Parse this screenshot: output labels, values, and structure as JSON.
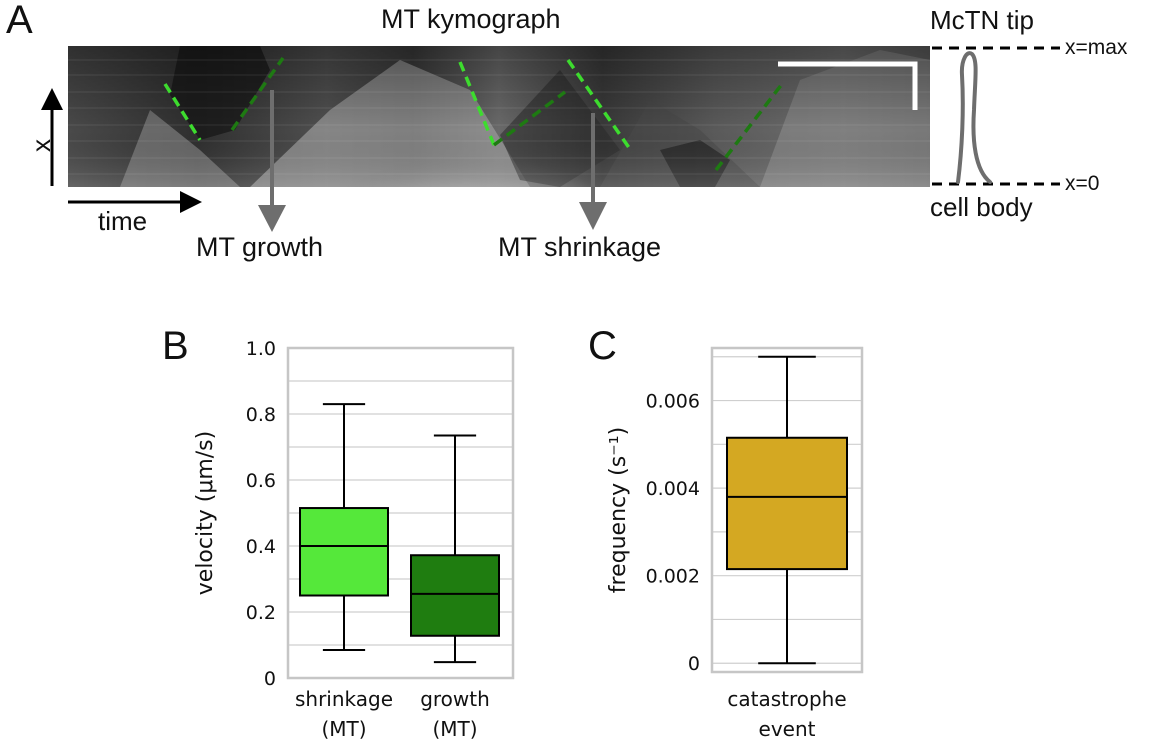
{
  "panel_a": {
    "letter": "A",
    "title": "MT kymograph",
    "x_axis_label": "x",
    "time_label": "time",
    "growth_label": "MT growth",
    "shrinkage_label": "MT shrinkage",
    "tip_label": "McTN tip",
    "body_label": "cell body",
    "xmax_label": "x=max",
    "x0_label": "x=0",
    "colors": {
      "growth_line": "#1e7a12",
      "shrinkage_line": "#3ddc2e",
      "arrow": "#6e6e6e"
    }
  },
  "panel_b": {
    "letter": "B"
  },
  "panel_c": {
    "letter": "C"
  },
  "chart_data": [
    {
      "type": "box",
      "panel": "B",
      "ylabel": "velocity (μm/s)",
      "ylim": [
        0,
        1.0
      ],
      "yticks": [
        "0",
        "0.2",
        "0.4",
        "0.6",
        "0.8",
        "1.0"
      ],
      "grid": true,
      "boxes": [
        {
          "label_line1": "shrinkage",
          "label_line2": "(MT)",
          "whisker_low": 0.085,
          "q1": 0.25,
          "median": 0.4,
          "q3": 0.515,
          "whisker_high": 0.83,
          "color": "#55e83a"
        },
        {
          "label_line1": "growth",
          "label_line2": "(MT)",
          "whisker_low": 0.048,
          "q1": 0.128,
          "median": 0.255,
          "q3": 0.372,
          "whisker_high": 0.735,
          "color": "#1f7d10"
        }
      ]
    },
    {
      "type": "box",
      "panel": "C",
      "ylabel": "frequency (s⁻¹)",
      "ylim": [
        -0.0002,
        0.0072
      ],
      "yticks": [
        "0",
        "0.002",
        "0.004",
        "0.006"
      ],
      "grid": true,
      "boxes": [
        {
          "label_line1": "catastrophe",
          "label_line2": "event",
          "whisker_low": 0.0,
          "q1": 0.00215,
          "median": 0.0038,
          "q3": 0.00515,
          "whisker_high": 0.007,
          "color": "#d4a822"
        }
      ]
    }
  ]
}
